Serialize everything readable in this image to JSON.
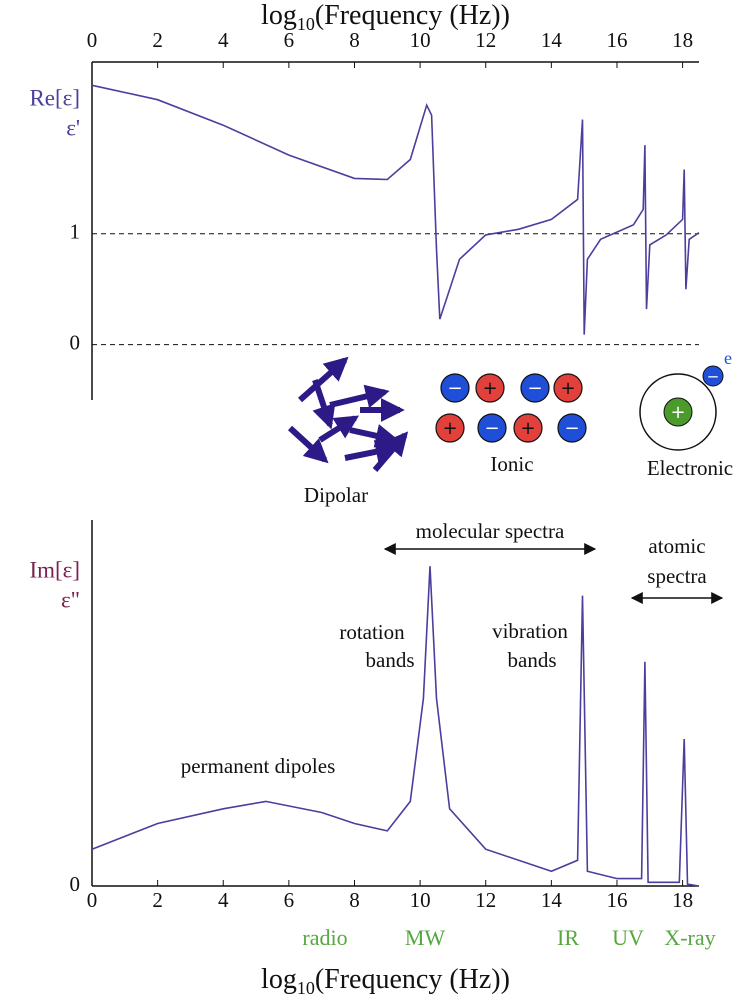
{
  "chart_data": [
    {
      "type": "line",
      "x_label": {
        "base": "log",
        "sub": "10",
        "rest": "(Frequency (Hz))"
      },
      "y_label": [
        "Re[ε]",
        "ε'"
      ],
      "xlim": [
        0,
        18.5
      ],
      "xticks": [
        0,
        2,
        4,
        6,
        8,
        10,
        12,
        14,
        16,
        18
      ],
      "ylim": [
        -0.5,
        2.55
      ],
      "yticks": [
        0,
        1
      ],
      "grid": true,
      "series": [
        {
          "color": "#4a3f9c",
          "x": [
            0,
            2,
            4,
            6,
            8,
            9,
            9.7,
            10.2,
            10.35,
            10.5,
            10.6,
            10.8,
            11.2,
            12,
            13,
            14,
            14.8,
            14.95,
            15.0,
            15.1,
            15.5,
            16.5,
            16.8,
            16.85,
            16.9,
            17.0,
            17.5,
            18.0,
            18.05,
            18.1,
            18.2,
            18.5
          ],
          "values": [
            2.34,
            2.21,
            1.98,
            1.71,
            1.5,
            1.49,
            1.67,
            2.16,
            2.07,
            0.86,
            0.23,
            0.41,
            0.77,
            0.99,
            1.04,
            1.13,
            1.31,
            2.03,
            0.09,
            0.77,
            0.95,
            1.08,
            1.22,
            1.8,
            0.32,
            0.9,
            0.99,
            1.13,
            1.58,
            0.5,
            0.95,
            1.01
          ]
        }
      ],
      "mechanisms": {
        "dipolar": "Dipolar",
        "ionic": {
          "label": "Ionic",
          "charges": [
            "−",
            "+",
            "−",
            "+",
            "+",
            "−",
            "+",
            "−"
          ]
        },
        "electronic": {
          "label": "Electronic",
          "nucleus": "+",
          "electron": "−",
          "electron_label": "e"
        }
      }
    },
    {
      "type": "line",
      "x_label": {
        "base": "log",
        "sub": "10",
        "rest": "(Frequency (Hz))"
      },
      "y_label": [
        "Im[ε]",
        "ε\""
      ],
      "xlim": [
        0,
        18.5
      ],
      "xticks": [
        0,
        2,
        4,
        6,
        8,
        10,
        12,
        14,
        16,
        18
      ],
      "ylim": [
        0,
        1.05
      ],
      "yticks": [
        0
      ],
      "grid": false,
      "series": [
        {
          "color": "#4a3f9c",
          "x": [
            0,
            2,
            4,
            5.3,
            7,
            8,
            9,
            9.7,
            10.1,
            10.3,
            10.5,
            10.9,
            12,
            14,
            14.8,
            14.95,
            15.1,
            16,
            16.75,
            16.85,
            16.95,
            17.9,
            18.05,
            18.15,
            18.5
          ],
          "values": [
            0.1,
            0.17,
            0.21,
            0.23,
            0.2,
            0.17,
            0.15,
            0.23,
            0.51,
            0.87,
            0.51,
            0.21,
            0.1,
            0.04,
            0.07,
            0.79,
            0.04,
            0.02,
            0.02,
            0.61,
            0.01,
            0.01,
            0.4,
            0.005,
            0
          ]
        }
      ],
      "annotations": {
        "molecular": "molecular spectra",
        "atomic": [
          "atomic",
          "spectra"
        ],
        "rotation": [
          "rotation",
          "bands"
        ],
        "vibration": [
          "vibration",
          "bands"
        ],
        "permanent": "permanent dipoles",
        "bands": [
          "radio",
          "MW",
          "IR",
          "UV",
          "X-ray"
        ]
      }
    }
  ]
}
